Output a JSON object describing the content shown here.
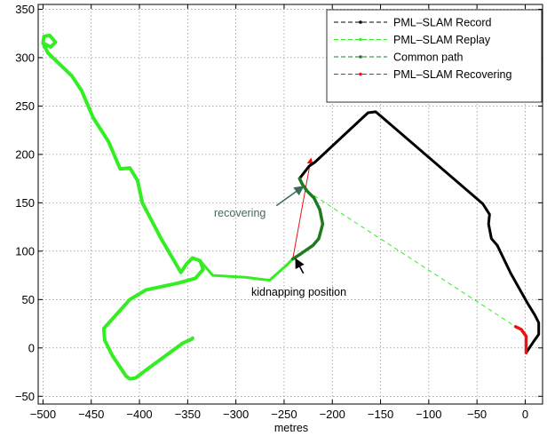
{
  "chart_data": {
    "type": "line",
    "xlabel": "metres",
    "ylabel": "",
    "title": "",
    "xlim": [
      -505,
      18
    ],
    "ylim": [
      -58,
      355
    ],
    "xticks": [
      -500,
      -450,
      -400,
      -350,
      -300,
      -250,
      -200,
      -150,
      -100,
      -50,
      0
    ],
    "yticks": [
      -50,
      0,
      50,
      100,
      150,
      200,
      250,
      300,
      350
    ],
    "grid": true,
    "legend_position": "top-right",
    "colors": {
      "record": "#000000",
      "replay": "#33ee22",
      "common": "#1f7a1f",
      "recovering": "#ee1111",
      "annotation_recovering": "#3d6b5a"
    },
    "series": [
      {
        "name": "PML–SLAM Record",
        "color": "#000000",
        "points": [
          [
            -234,
            175
          ],
          [
            -224,
            188
          ],
          [
            -218,
            192
          ],
          [
            -163,
            243
          ],
          [
            -155,
            244
          ],
          [
            -149,
            239
          ],
          [
            -44,
            149
          ],
          [
            -37,
            138
          ],
          [
            -38,
            128
          ],
          [
            -35,
            113
          ],
          [
            -29,
            106
          ],
          [
            -15,
            77
          ],
          [
            2,
            47
          ],
          [
            10,
            34
          ],
          [
            14,
            26
          ],
          [
            14,
            14
          ],
          [
            9,
            7
          ],
          [
            1,
            -5
          ]
        ]
      },
      {
        "name": "PML–SLAM Replay",
        "color": "#33ee22",
        "points": [
          [
            -345,
            10
          ],
          [
            -346,
            9
          ],
          [
            -355,
            5
          ],
          [
            -396,
            -25
          ],
          [
            -404,
            -31
          ],
          [
            -410,
            -32
          ],
          [
            -414,
            -29
          ],
          [
            -428,
            -8
          ],
          [
            -436,
            8
          ],
          [
            -437,
            20
          ],
          [
            -410,
            50
          ],
          [
            -393,
            60
          ],
          [
            -360,
            67
          ],
          [
            -342,
            72
          ],
          [
            -334,
            81
          ],
          [
            -337,
            90
          ],
          [
            -345,
            93
          ],
          [
            -351,
            87
          ],
          [
            -357,
            78
          ],
          [
            -377,
            112
          ],
          [
            -397,
            150
          ],
          [
            -402,
            173
          ],
          [
            -410,
            186
          ],
          [
            -420,
            185
          ],
          [
            -426,
            199
          ],
          [
            -432,
            213
          ],
          [
            -448,
            238
          ],
          [
            -460,
            266
          ],
          [
            -470,
            281
          ],
          [
            -495,
            305
          ],
          [
            -500,
            315
          ],
          [
            -499,
            322
          ],
          [
            -493,
            323
          ],
          [
            -487,
            316
          ],
          [
            -492,
            311
          ],
          [
            -500,
            315
          ]
        ]
      },
      {
        "name": "PML–SLAM Replay",
        "color": "#33ee22",
        "points": [
          [
            -337,
            90
          ],
          [
            -324,
            75
          ],
          [
            -290,
            73
          ],
          [
            -275,
            71
          ],
          [
            -265,
            70
          ],
          [
            -248,
            85
          ],
          [
            -241,
            92
          ]
        ]
      },
      {
        "name": "Common path",
        "color": "#1f7a1f",
        "points": [
          [
            -241,
            92
          ],
          [
            -233,
            97
          ],
          [
            -220,
            106
          ],
          [
            -214,
            113
          ],
          [
            -210,
            128
          ],
          [
            -213,
            143
          ],
          [
            -219,
            155
          ],
          [
            -226,
            162
          ],
          [
            -231,
            169
          ],
          [
            -234,
            175
          ]
        ]
      },
      {
        "name": "PML–SLAM Recovering",
        "color": "#ee1111",
        "points": [
          [
            -10,
            22
          ],
          [
            -4,
            19
          ],
          [
            1,
            12
          ],
          [
            1,
            0
          ],
          [
            1,
            -5
          ]
        ]
      }
    ],
    "connectors": [
      {
        "color": "#33ee22",
        "points": [
          [
            -226,
            162
          ],
          [
            -10,
            22
          ]
        ]
      },
      {
        "color": "#ee1111",
        "points": [
          [
            -241,
            92
          ],
          [
            -222,
            196
          ]
        ]
      }
    ],
    "annotations": [
      {
        "text": "recovering",
        "color": "#3d6b5a",
        "arrow_from": [
          -258,
          147
        ],
        "arrow_to": [
          -230,
          167
        ]
      },
      {
        "text": "kidnapping position",
        "color": "#000000",
        "arrow_from": [
          -230,
          77
        ],
        "arrow_to": [
          -238,
          92
        ]
      }
    ]
  }
}
